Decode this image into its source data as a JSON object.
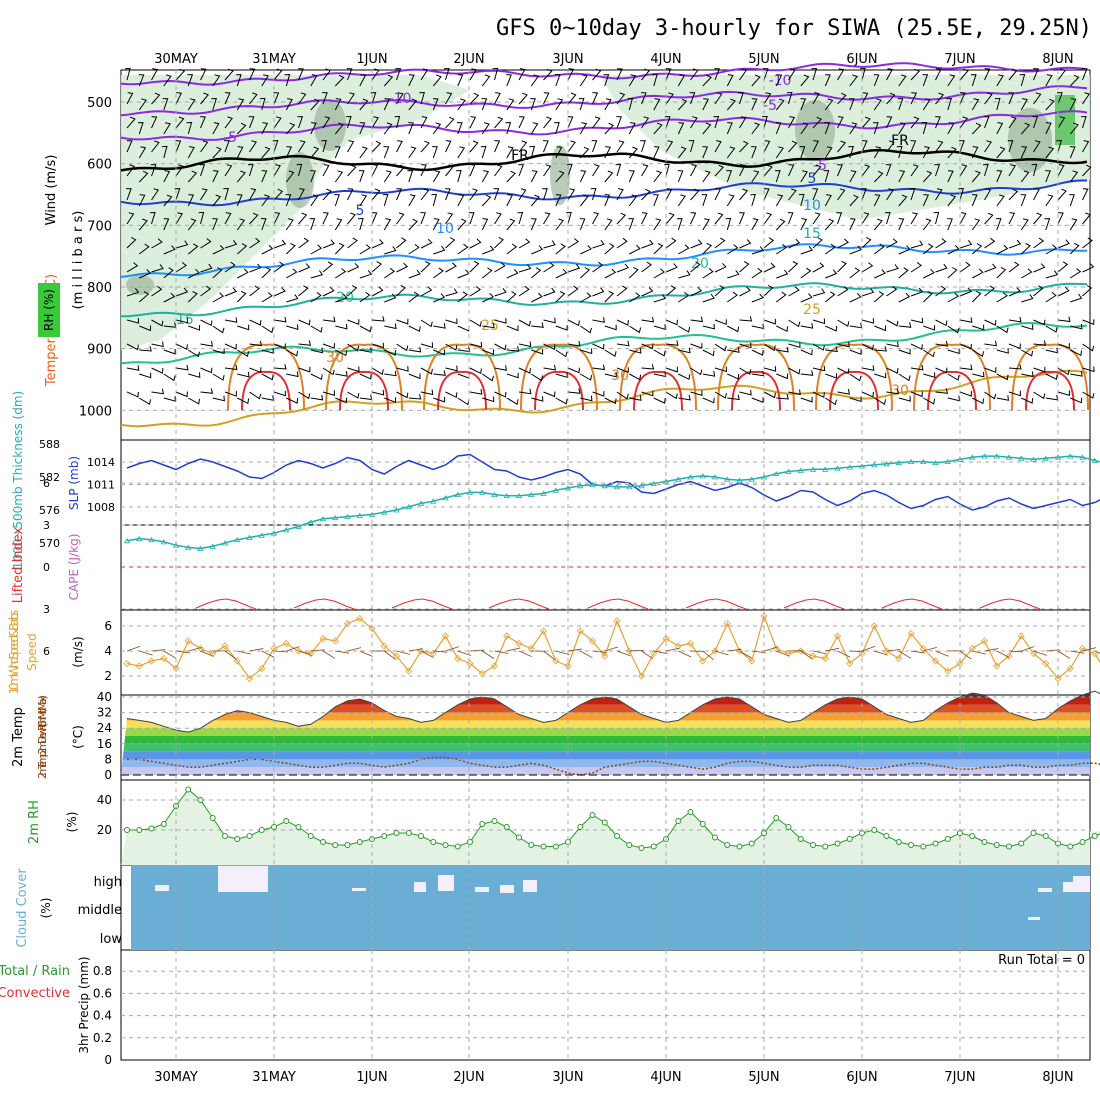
{
  "title": "GFS 0~10day 3-hourly for SIWA (25.5E, 29.25N)",
  "colors": {
    "frame": "#000000",
    "grid": "#aaaaaa",
    "wind_ylabel": "#000000",
    "temp_ylabel": "#e8601c",
    "temp_ylabel_mid": "#8a2be2",
    "rh_ylabel": "#2a9a2a",
    "rh_fill": "#d8ecd8",
    "rh_fill_dark": "#9bb59b",
    "slp": "#1f3fcf",
    "thick": "#20b0b0",
    "cape": "#c060c0",
    "li": "#e03030",
    "wind10": "#e8a030",
    "wind10_label": "#e8a030",
    "dewpt": "#8b4513",
    "cloud": "#6aaed6",
    "rh2m": "#2a9a2a",
    "precip_total": "#2a9a2a",
    "precip_conv": "#e03030"
  },
  "date_labels": [
    "30MAY",
    "31MAY",
    "1JUN",
    "2JUN",
    "3JUN",
    "4JUN",
    "5JUN",
    "6JUN",
    "7JUN",
    "8JUN"
  ],
  "panels": {
    "upper": {
      "ylabels": [
        "Wind (m/s)",
        "Temperature (°C)",
        "RH (%)"
      ],
      "unit_label": "(m i l l i b a r s)",
      "yticks": [
        "500",
        "600",
        "700",
        "800",
        "900",
        "1000"
      ],
      "contour_labels": [
        "-10",
        "-10",
        "-5",
        "-5",
        "-5",
        "FR",
        "FR",
        "5",
        "5",
        "10",
        "10",
        "15",
        "15",
        "20",
        "20",
        "25",
        "25",
        "30",
        "30",
        "30"
      ]
    },
    "slp_thick": {
      "ylabel_left": "1000~500mb Thickness (dm)",
      "ylabel_right": "SLP (mb)",
      "left_ticks": [
        "588",
        "582",
        "576",
        "570"
      ],
      "right_ticks": [
        "1014",
        "1011",
        "1008"
      ]
    },
    "cape_li": {
      "ylabel_left": "Lifted Index",
      "ylabel_right": "CAPE (J/kg)",
      "ticks": [
        "6",
        "3",
        "0",
        "3",
        "6"
      ]
    },
    "wind10": {
      "ylabel": "10m Wind Speed & Barbs",
      "unit": "(m/s)",
      "ticks": [
        "6",
        "4",
        "2"
      ]
    },
    "temp2m": {
      "ylabel": "2m Temp 2m DewPt (6hr Min/Max)",
      "unit": "(°C)",
      "ticks": [
        "40",
        "32",
        "24",
        "16",
        "8",
        "0"
      ]
    },
    "rh2m": {
      "ylabel": "2m RH",
      "unit": "(%)",
      "ticks": [
        "40",
        "20"
      ]
    },
    "cloud": {
      "ylabel": "Cloud Cover",
      "unit": "(%)",
      "levels": [
        "high",
        "middle",
        "low"
      ]
    },
    "precip": {
      "ylabel_total": "Total / Rain",
      "ylabel_conv": "Convective",
      "ylabel": "3hr Precip (mm)",
      "ticks": [
        "0.8",
        "0.6",
        "0.4",
        "0.2",
        "0"
      ],
      "run_total": "Run Total = 0"
    }
  },
  "chart_data": [
    {
      "type": "line",
      "title": "SLP (mb) / 1000~500mb Thickness (dm)",
      "x": "3-hourly steps 0..80 (29 May 12Z to 8 Jun 12Z)",
      "series": [
        {
          "name": "SLP (mb)",
          "values": [
            1013.2,
            1013.8,
            1014.2,
            1013.6,
            1013.0,
            1013.8,
            1014.4,
            1014.0,
            1013.4,
            1012.8,
            1012.0,
            1011.8,
            1012.6,
            1013.6,
            1014.2,
            1013.8,
            1013.2,
            1013.8,
            1014.6,
            1014.2,
            1013.0,
            1012.4,
            1013.4,
            1014.2,
            1013.6,
            1013.0,
            1013.6,
            1014.8,
            1015.0,
            1014.0,
            1013.0,
            1012.8,
            1012.0,
            1011.6,
            1012.0,
            1012.6,
            1013.0,
            1012.4,
            1011.0,
            1010.8,
            1011.4,
            1011.2,
            1010.0,
            1009.8,
            1010.4,
            1011.0,
            1011.4,
            1010.8,
            1010.2,
            1010.6,
            1011.2,
            1010.6,
            1009.6,
            1008.8,
            1009.4,
            1010.2,
            1010.0,
            1009.0,
            1008.2,
            1008.8,
            1009.8,
            1010.2,
            1009.6,
            1008.6,
            1007.8,
            1008.2,
            1009.0,
            1009.4,
            1008.4,
            1007.6,
            1008.0,
            1008.8,
            1009.2,
            1008.4,
            1007.8,
            1008.2,
            1008.6,
            1009.0,
            1008.2,
            1008.6,
            1009.4
          ]
        },
        {
          "name": "Thickness (dm)",
          "values": [
            570.4,
            570.8,
            570.6,
            570.2,
            569.6,
            569.2,
            569.0,
            569.4,
            570.0,
            570.6,
            571.0,
            571.4,
            571.8,
            572.4,
            573.0,
            573.8,
            574.4,
            574.6,
            574.8,
            575.0,
            575.2,
            575.6,
            576.0,
            576.6,
            577.2,
            577.6,
            578.2,
            578.8,
            579.2,
            579.2,
            578.8,
            578.6,
            578.6,
            578.8,
            579.0,
            579.6,
            580.0,
            580.4,
            580.6,
            580.4,
            580.2,
            580.2,
            580.4,
            580.8,
            581.2,
            581.6,
            582.0,
            582.2,
            582.0,
            581.6,
            581.4,
            581.6,
            582.0,
            582.6,
            583.0,
            583.2,
            583.4,
            583.4,
            583.6,
            583.8,
            584.0,
            584.2,
            584.4,
            584.6,
            584.8,
            584.8,
            584.6,
            584.8,
            585.2,
            585.6,
            585.8,
            585.8,
            585.6,
            585.4,
            585.2,
            585.4,
            585.6,
            585.8,
            585.6,
            585.0,
            584.4
          ]
        }
      ]
    },
    {
      "type": "line",
      "title": "10m Wind Speed (m/s)",
      "x": "3-hourly steps 0..80",
      "series": [
        {
          "name": "Wind Speed",
          "values": [
            3.0,
            2.8,
            3.2,
            3.4,
            2.6,
            4.8,
            4.2,
            3.8,
            4.4,
            3.2,
            1.8,
            2.6,
            4.2,
            4.6,
            4.0,
            3.8,
            5.0,
            4.8,
            6.2,
            6.6,
            5.8,
            4.4,
            3.6,
            2.4,
            4.0,
            3.8,
            5.2,
            3.4,
            3.0,
            2.2,
            2.8,
            5.2,
            4.6,
            4.2,
            5.6,
            3.2,
            2.8,
            5.6,
            4.8,
            3.6,
            6.4,
            4.0,
            2.0,
            3.8,
            5.0,
            4.4,
            4.6,
            3.2,
            4.0,
            6.2,
            4.0,
            3.2,
            6.8,
            4.2,
            3.8,
            4.0,
            3.6,
            3.4,
            5.2,
            3.0,
            3.8,
            6.0,
            4.0,
            3.4,
            5.4,
            4.2,
            3.2,
            2.4,
            3.0,
            4.2,
            4.8,
            2.8,
            3.6,
            5.2,
            3.8,
            3.0,
            1.8,
            2.6,
            4.2,
            3.8,
            2.2
          ]
        }
      ]
    },
    {
      "type": "area",
      "title": "2m Temp (°C)",
      "x": "3-hourly steps 0..80",
      "series": [
        {
          "name": "2m Temp",
          "values": [
            29,
            28,
            27,
            25,
            23,
            22,
            24,
            28,
            31,
            33,
            32,
            30,
            28,
            27,
            25,
            26,
            30,
            35,
            38,
            39,
            37,
            33,
            30,
            29,
            27,
            28,
            32,
            36,
            39,
            40,
            39,
            35,
            31,
            29,
            27,
            28,
            32,
            36,
            39,
            40,
            39,
            35,
            31,
            29,
            27,
            28,
            32,
            36,
            39,
            40,
            39,
            35,
            31,
            29,
            27,
            28,
            32,
            36,
            39,
            40,
            39,
            35,
            31,
            29,
            27,
            28,
            33,
            37,
            40,
            42,
            41,
            37,
            32,
            30,
            28,
            29,
            34,
            38,
            41,
            43,
            40
          ]
        },
        {
          "name": "2m DewPt",
          "values": [
            8,
            8,
            7,
            6,
            5,
            4,
            4,
            5,
            6,
            7,
            8,
            8,
            7,
            6,
            5,
            4,
            4,
            5,
            6,
            6,
            5,
            4,
            5,
            6,
            8,
            9,
            9,
            8,
            6,
            5,
            4,
            4,
            5,
            6,
            5,
            3,
            1,
            0,
            1,
            4,
            5,
            6,
            7,
            7,
            6,
            5,
            4,
            3,
            4,
            6,
            7,
            7,
            6,
            5,
            4,
            4,
            5,
            5,
            5,
            4,
            3,
            3,
            4,
            5,
            6,
            6,
            5,
            4,
            3,
            3,
            4,
            4,
            5,
            5,
            4,
            4,
            5,
            5,
            6,
            6,
            5
          ]
        }
      ]
    },
    {
      "type": "area",
      "title": "2m RH (%)",
      "x": "3-hourly steps 0..80",
      "series": [
        {
          "name": "2m RH",
          "values": [
            20,
            20,
            21,
            24,
            36,
            47,
            40,
            28,
            16,
            14,
            16,
            20,
            22,
            26,
            22,
            16,
            12,
            10,
            10,
            12,
            14,
            16,
            18,
            18,
            16,
            12,
            10,
            9,
            12,
            24,
            26,
            22,
            15,
            10,
            9,
            9,
            12,
            22,
            30,
            25,
            16,
            10,
            8,
            9,
            14,
            26,
            32,
            24,
            15,
            10,
            9,
            11,
            18,
            28,
            22,
            14,
            10,
            9,
            11,
            14,
            18,
            20,
            16,
            12,
            10,
            9,
            11,
            14,
            18,
            16,
            12,
            10,
            9,
            11,
            18,
            16,
            11,
            9,
            12,
            16,
            19
          ]
        }
      ]
    },
    {
      "type": "line",
      "title": "3hr Precip (mm)",
      "x": "3-hourly steps 0..80",
      "ylim": [
        0,
        0.9
      ],
      "series": [
        {
          "name": "Total / Rain",
          "values": [
            0,
            0,
            0,
            0,
            0,
            0,
            0,
            0,
            0,
            0,
            0,
            0,
            0,
            0,
            0,
            0,
            0,
            0,
            0,
            0,
            0,
            0,
            0,
            0,
            0,
            0,
            0,
            0,
            0,
            0,
            0,
            0,
            0,
            0,
            0,
            0,
            0,
            0,
            0,
            0,
            0,
            0,
            0,
            0,
            0,
            0,
            0,
            0,
            0,
            0,
            0,
            0,
            0,
            0,
            0,
            0,
            0,
            0,
            0,
            0,
            0,
            0,
            0,
            0,
            0,
            0,
            0,
            0,
            0,
            0,
            0,
            0,
            0,
            0,
            0,
            0,
            0,
            0,
            0,
            0,
            0
          ]
        },
        {
          "name": "Convective",
          "values": [
            0,
            0,
            0,
            0,
            0,
            0,
            0,
            0,
            0,
            0,
            0,
            0,
            0,
            0,
            0,
            0,
            0,
            0,
            0,
            0,
            0,
            0,
            0,
            0,
            0,
            0,
            0,
            0,
            0,
            0,
            0,
            0,
            0,
            0,
            0,
            0,
            0,
            0,
            0,
            0,
            0,
            0,
            0,
            0,
            0,
            0,
            0,
            0,
            0,
            0,
            0,
            0,
            0,
            0,
            0,
            0,
            0,
            0,
            0,
            0,
            0,
            0,
            0,
            0,
            0,
            0,
            0,
            0,
            0,
            0,
            0,
            0,
            0,
            0,
            0,
            0,
            0,
            0,
            0,
            0,
            0
          ]
        }
      ]
    }
  ]
}
